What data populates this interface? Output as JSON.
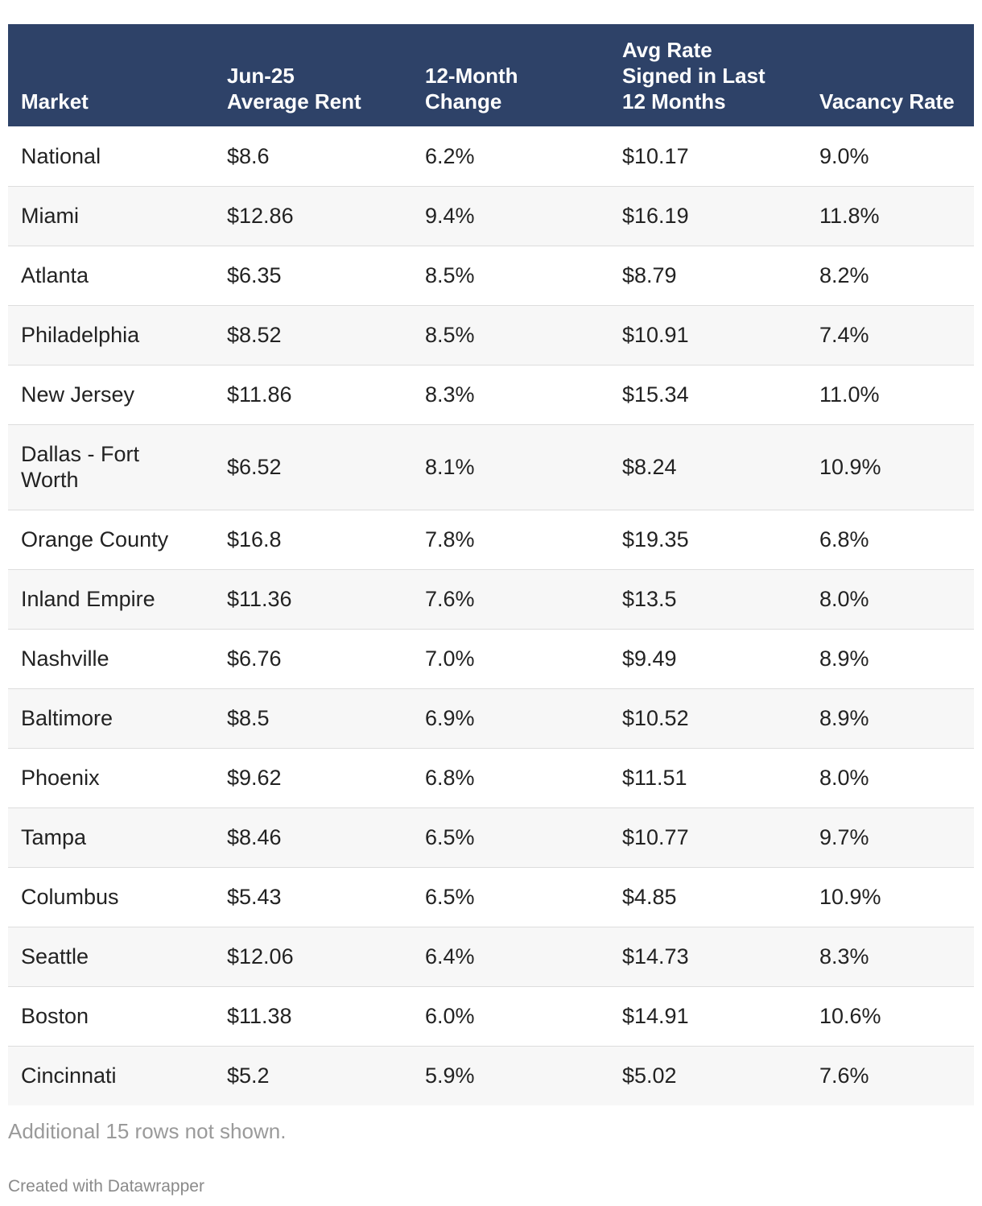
{
  "chart_data": {
    "type": "table",
    "columns": [
      "Market",
      "Jun-25\nAverage Rent",
      "12-Month\nChange",
      "Avg Rate\nSigned in Last\n12 Months",
      "Vacancy Rate"
    ],
    "rows": [
      [
        "National",
        "$8.6",
        "6.2%",
        "$10.17",
        "9.0%"
      ],
      [
        "Miami",
        "$12.86",
        "9.4%",
        "$16.19",
        "11.8%"
      ],
      [
        "Atlanta",
        "$6.35",
        "8.5%",
        "$8.79",
        "8.2%"
      ],
      [
        "Philadelphia",
        "$8.52",
        "8.5%",
        "$10.91",
        "7.4%"
      ],
      [
        "New Jersey",
        "$11.86",
        "8.3%",
        "$15.34",
        "11.0%"
      ],
      [
        "Dallas - Fort Worth",
        "$6.52",
        "8.1%",
        "$8.24",
        "10.9%"
      ],
      [
        "Orange County",
        "$16.8",
        "7.8%",
        "$19.35",
        "6.8%"
      ],
      [
        "Inland Empire",
        "$11.36",
        "7.6%",
        "$13.5",
        "8.0%"
      ],
      [
        "Nashville",
        "$6.76",
        "7.0%",
        "$9.49",
        "8.9%"
      ],
      [
        "Baltimore",
        "$8.5",
        "6.9%",
        "$10.52",
        "8.9%"
      ],
      [
        "Phoenix",
        "$9.62",
        "6.8%",
        "$11.51",
        "8.0%"
      ],
      [
        "Tampa",
        "$8.46",
        "6.5%",
        "$10.77",
        "9.7%"
      ],
      [
        "Columbus",
        "$5.43",
        "6.5%",
        "$4.85",
        "10.9%"
      ],
      [
        "Seattle",
        "$12.06",
        "6.4%",
        "$14.73",
        "8.3%"
      ],
      [
        "Boston",
        "$11.38",
        "6.0%",
        "$14.91",
        "10.6%"
      ],
      [
        "Cincinnati",
        "$5.2",
        "5.9%",
        "$5.02",
        "7.6%"
      ]
    ],
    "note": "Additional 15 rows not shown.",
    "credit": "Created with Datawrapper",
    "colors": {
      "header_bg": "#2e4268",
      "header_text": "#ffffff",
      "stripe": "#f7f7f7",
      "note_text": "#9a9a9a"
    }
  }
}
